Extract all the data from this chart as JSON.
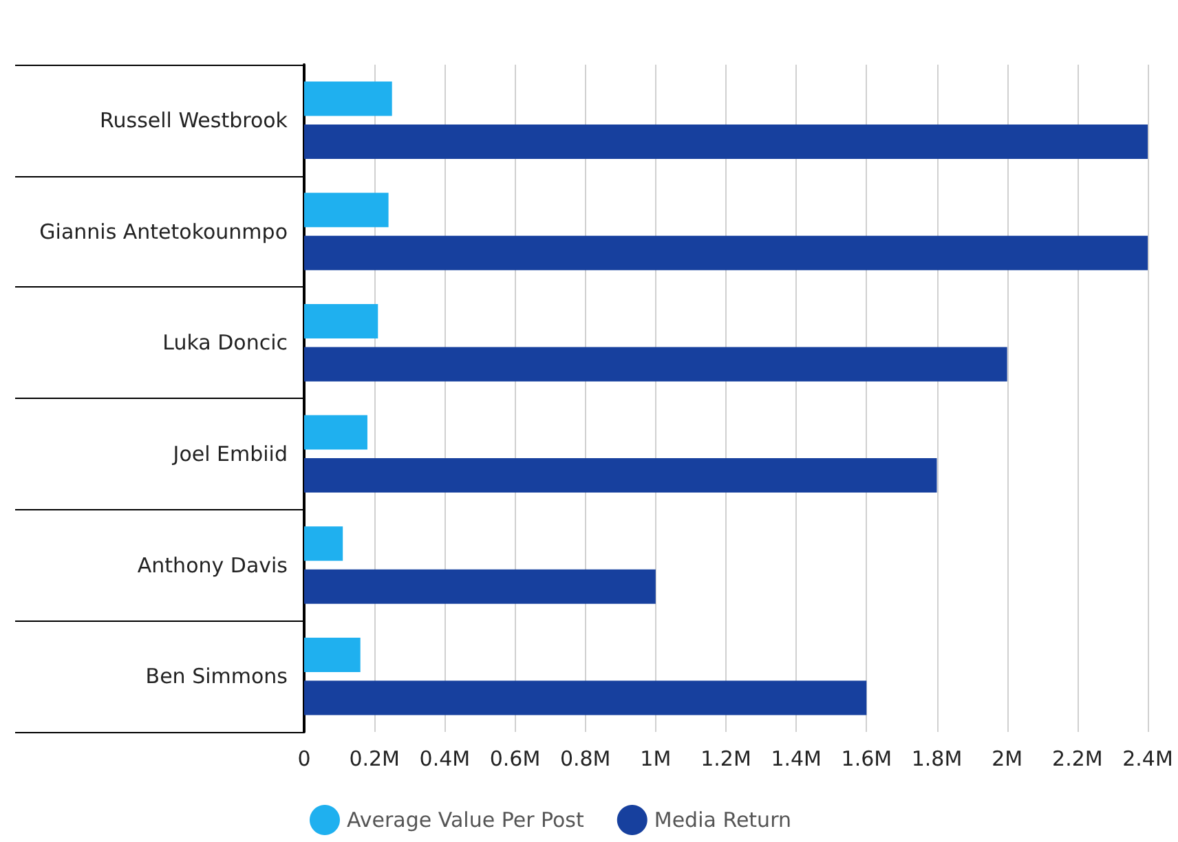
{
  "chart_data": {
    "type": "bar",
    "orientation": "horizontal",
    "categories": [
      "Russell Westbrook",
      "Giannis Antetokounmpo",
      "Luka Doncic",
      "Joel Embiid",
      "Anthony Davis",
      "Ben Simmons"
    ],
    "series": [
      {
        "name": "Average Value Per Post",
        "color": "#1fb0ef",
        "values": [
          0.25,
          0.24,
          0.21,
          0.18,
          0.11,
          0.16
        ]
      },
      {
        "name": "Media Return",
        "color": "#17409e",
        "values": [
          2.4,
          2.4,
          2.0,
          1.8,
          1.0,
          1.6
        ]
      }
    ],
    "xlim": [
      0,
      2.4
    ],
    "xticks": [
      0,
      {
        "value": 0.2,
        "label": "0.2M"
      },
      {
        "value": 0.4,
        "label": "0.4M"
      },
      {
        "value": 0.6,
        "label": "0.6M"
      },
      {
        "value": 0.8,
        "label": "0.8M"
      },
      {
        "value": 1,
        "label": "1M"
      },
      {
        "value": 1.2,
        "label": "1.2M"
      },
      {
        "value": 1.4,
        "label": "1.4M"
      },
      {
        "value": 1.6,
        "label": "1.6M"
      },
      {
        "value": 1.8,
        "label": "1.8M"
      },
      {
        "value": 2,
        "label": "2M"
      },
      {
        "value": 2.2,
        "label": "2.2M"
      },
      {
        "value": 2.4,
        "label": "2.4M"
      }
    ],
    "grid": "x",
    "legend": "bottom",
    "marker": "circle"
  }
}
